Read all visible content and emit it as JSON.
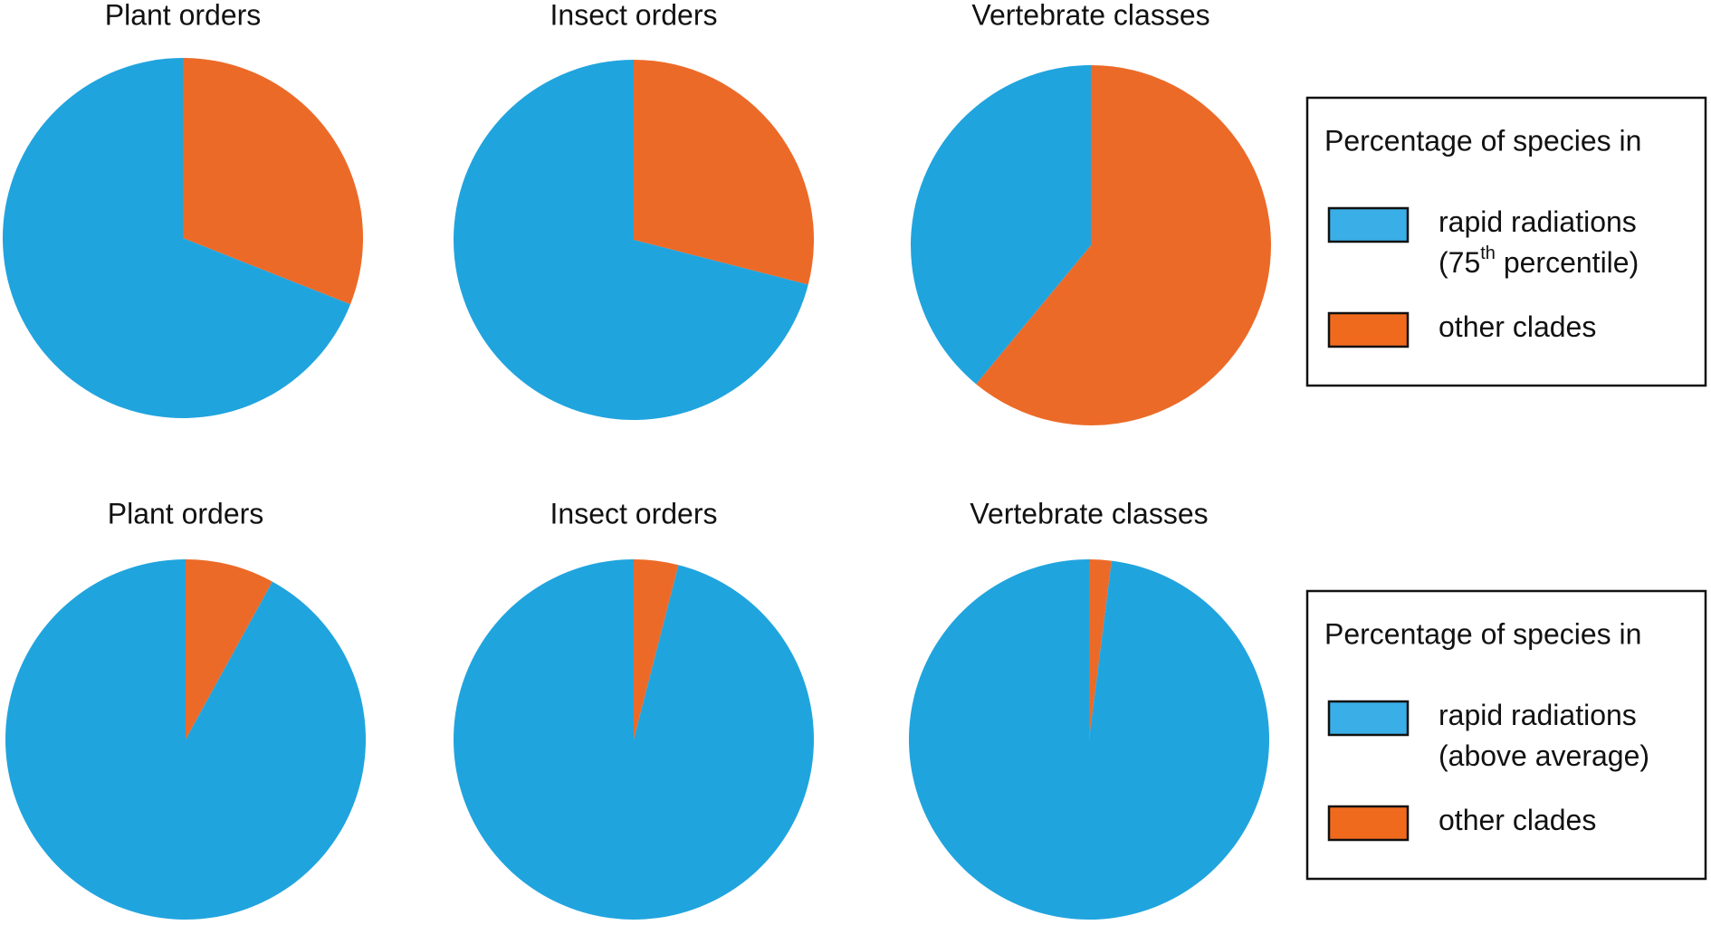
{
  "chart_data": [
    {
      "type": "pie",
      "title": "Plant orders",
      "values": [
        31,
        69
      ],
      "colors": [
        "#ec6a28",
        "#20a4de"
      ]
    },
    {
      "type": "pie",
      "title": "Insect orders",
      "values": [
        29,
        71
      ],
      "colors": [
        "#ec6a28",
        "#20a4de"
      ]
    },
    {
      "type": "pie",
      "title": "Vertebrate classes",
      "values": [
        61,
        39
      ],
      "colors": [
        "#ec6a28",
        "#20a4de"
      ]
    },
    {
      "type": "pie",
      "title": "Plant orders",
      "values": [
        8,
        92
      ],
      "colors": [
        "#ec6a28",
        "#20a4de"
      ]
    },
    {
      "type": "pie",
      "title": "Insect orders",
      "values": [
        4,
        96
      ],
      "colors": [
        "#ec6a28",
        "#20a4de"
      ]
    },
    {
      "type": "pie",
      "title": "Vertebrate classes",
      "values": [
        2,
        98
      ],
      "colors": [
        "#ec6a28",
        "#20a4de"
      ]
    }
  ],
  "legends": [
    {
      "title": "Percentage of species in",
      "entries": [
        {
          "color": "#3aaee6",
          "lines": [
            [
              "rapid radiations"
            ],
            [
              "(75",
              {
                "text": "th",
                "sup": true
              },
              " percentile)"
            ]
          ]
        },
        {
          "color": "#f06a1e",
          "lines": [
            [
              "other clades"
            ]
          ]
        }
      ]
    },
    {
      "title": "Percentage of species in",
      "entries": [
        {
          "color": "#3aaee6",
          "lines": [
            [
              "rapid radiations"
            ],
            [
              "(above average)"
            ]
          ]
        },
        {
          "color": "#f06a1e",
          "lines": [
            [
              "other clades"
            ]
          ]
        }
      ]
    }
  ]
}
